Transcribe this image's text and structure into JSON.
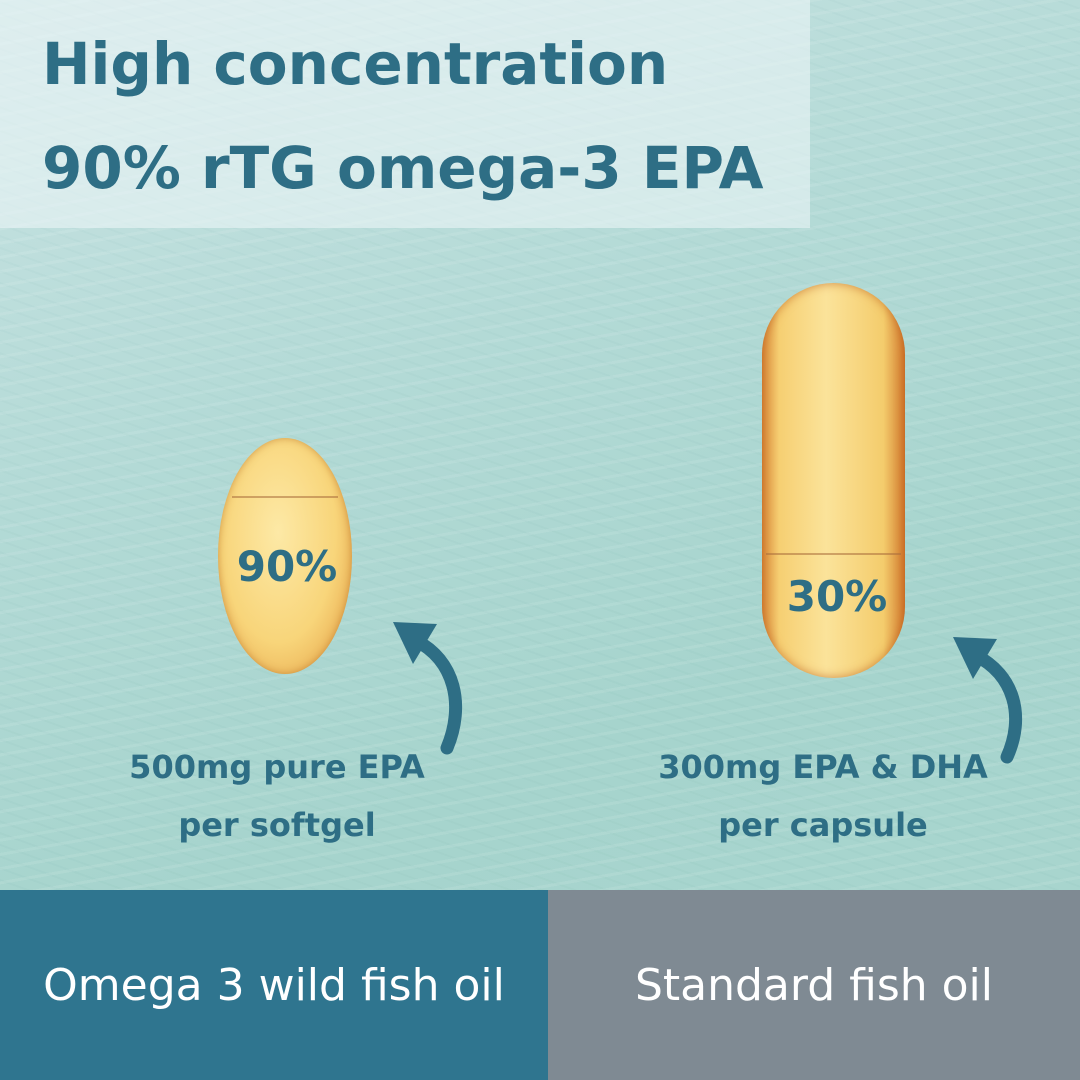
{
  "title": {
    "line1": "High concentration",
    "line2": "90% rTG omega-3 EPA"
  },
  "products": [
    {
      "percent": "90%",
      "label_line1": "500mg pure EPA",
      "label_line2": "per softgel",
      "name": "Omega 3 wild fish oil"
    },
    {
      "percent": "30%",
      "label_line1": "300mg EPA & DHA",
      "label_line2": "per capsule",
      "name": "Standard fish oil"
    }
  ],
  "colors": {
    "accent": "#2e6e85",
    "left_bar": "#2f758f",
    "right_bar": "#7f8a93"
  }
}
